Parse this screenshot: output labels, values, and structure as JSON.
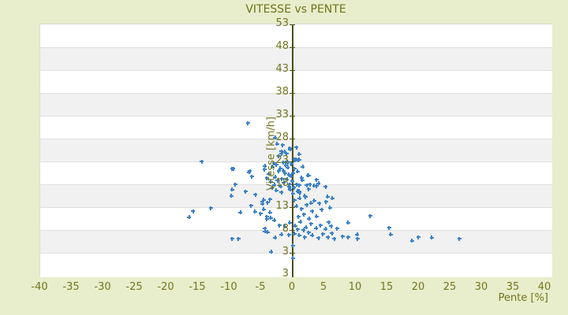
{
  "colors": {
    "background": "#e8edcb",
    "label_olive": "#73761e",
    "title_olive": "#6e7419",
    "axis_line": "#4b4e0a",
    "band_white": "#ffffff",
    "band_gray": "#f1f1f1",
    "gridline": "#e0e0e0",
    "point_blue": "#3c82c8"
  },
  "chart_data": {
    "type": "scatter",
    "title": "VITESSE vs PENTE",
    "xlabel": "Pente [%]",
    "ylabel": "Vitesse [km/h]",
    "x_ticks": [
      -40,
      -35,
      -30,
      -25,
      -20,
      -15,
      -10,
      -5,
      0,
      5,
      10,
      15,
      20,
      25,
      30,
      35,
      40
    ],
    "y_ticks": [
      3,
      8,
      13,
      18,
      23,
      28,
      33,
      38,
      43,
      48,
      53
    ],
    "y_axis_bottom_label": "3",
    "x_range": [
      -40,
      40
    ],
    "grid": "horizontal-bands",
    "legend": "none",
    "series": [
      {
        "name": "vitesse-vs-pente",
        "marker": "plus",
        "color": "#3c82c8",
        "points": [
          [
            -7.1,
            31.4
          ],
          [
            -2.8,
            28.2
          ],
          [
            -2.5,
            26.8
          ],
          [
            -1.8,
            25.2
          ],
          [
            -0.4,
            25.6
          ],
          [
            -1.0,
            24.7
          ],
          [
            -2.2,
            24.2
          ],
          [
            -0.5,
            25.9
          ],
          [
            -1.3,
            25.1
          ],
          [
            -1.8,
            24.7
          ],
          [
            0.6,
            26.1
          ],
          [
            1.0,
            24.6
          ],
          [
            -1.6,
            26.6
          ],
          [
            -14.4,
            23.0
          ],
          [
            -9.6,
            21.4
          ],
          [
            -6.9,
            20.6
          ],
          [
            -6.5,
            19.7
          ],
          [
            0.9,
            23.3
          ],
          [
            0.4,
            23.2
          ],
          [
            0.5,
            23.5
          ],
          [
            -0.8,
            22.8
          ],
          [
            -1.5,
            22.8
          ],
          [
            -0.9,
            23.0
          ],
          [
            -2.6,
            22.3
          ],
          [
            -4.4,
            22.0
          ],
          [
            -6.8,
            20.9
          ],
          [
            1.6,
            21.8
          ],
          [
            0.3,
            21.4
          ],
          [
            1.0,
            23.4
          ],
          [
            0.8,
            20.8
          ],
          [
            0.3,
            23.5
          ],
          [
            -9.4,
            21.4
          ],
          [
            -4.5,
            21.2
          ],
          [
            -3.8,
            20.3
          ],
          [
            -3.2,
            21.8
          ],
          [
            -2.8,
            19.6
          ],
          [
            -2.2,
            20.9
          ],
          [
            -1.7,
            19.2
          ],
          [
            -1.2,
            20.4
          ],
          [
            -0.8,
            21.7
          ],
          [
            -0.3,
            19.8
          ],
          [
            -3.5,
            18.6
          ],
          [
            -2.9,
            17.9
          ],
          [
            -2.4,
            18.8
          ],
          [
            -1.9,
            17.5
          ],
          [
            -1.4,
            18.3
          ],
          [
            -0.9,
            19.1
          ],
          [
            -0.5,
            18.0
          ],
          [
            -0.1,
            18.7
          ],
          [
            -4.1,
            19.3
          ],
          [
            -1.1,
            22.2
          ],
          [
            -0.6,
            20.1
          ],
          [
            -2.0,
            21.5
          ],
          [
            -3.0,
            22.6
          ],
          [
            -1.5,
            21.0
          ],
          [
            -0.2,
            22.4
          ],
          [
            0.1,
            20.5
          ],
          [
            -2.6,
            16.7
          ],
          [
            -1.8,
            16.2
          ],
          [
            -3.3,
            17.2
          ],
          [
            0.2,
            17.3
          ],
          [
            -0.4,
            16.8
          ],
          [
            -9.1,
            18.0
          ],
          [
            -9.6,
            16.8
          ],
          [
            -7.5,
            16.4
          ],
          [
            -9.7,
            15.5
          ],
          [
            -5.9,
            15.7
          ],
          [
            2.5,
            19.9
          ],
          [
            3.8,
            19.0
          ],
          [
            1.5,
            18.9
          ],
          [
            0.6,
            18.0
          ],
          [
            3.4,
            17.7
          ],
          [
            4.1,
            18.2
          ],
          [
            -0.6,
            17.4
          ],
          [
            5.2,
            17.4
          ],
          [
            2.5,
            16.9
          ],
          [
            1.0,
            16.5
          ],
          [
            0.0,
            16.0
          ],
          [
            1.9,
            15.5
          ],
          [
            1.4,
            19.4
          ],
          [
            2.4,
            19.9
          ],
          [
            1.0,
            17.8
          ],
          [
            2.2,
            17.8
          ],
          [
            2.7,
            18.0
          ],
          [
            3.8,
            17.6
          ],
          [
            0.8,
            16.5
          ],
          [
            1.1,
            16.1
          ],
          [
            -4.8,
            13.7
          ],
          [
            -6.6,
            13.3
          ],
          [
            -13.0,
            12.8
          ],
          [
            -15.8,
            12.1
          ],
          [
            -16.4,
            10.8
          ],
          [
            -8.3,
            11.8
          ],
          [
            -6.0,
            12.0
          ],
          [
            -5.1,
            11.6
          ],
          [
            -4.1,
            10.4
          ],
          [
            -2.9,
            10.1
          ],
          [
            -4.8,
            14.2
          ],
          [
            -4.6,
            14.6
          ],
          [
            -4.0,
            14.0
          ],
          [
            -3.6,
            14.7
          ],
          [
            -4.6,
            12.5
          ],
          [
            -3.6,
            11.8
          ],
          [
            -4.1,
            10.9
          ],
          [
            -3.5,
            10.6
          ],
          [
            5.5,
            15.3
          ],
          [
            6.3,
            14.9
          ],
          [
            5.3,
            14.2
          ],
          [
            2.9,
            13.9
          ],
          [
            0.6,
            13.2
          ],
          [
            1.4,
            12.6
          ],
          [
            2.2,
            13.5
          ],
          [
            3.1,
            12.1
          ],
          [
            1.8,
            11.4
          ],
          [
            0.9,
            10.9
          ],
          [
            2.6,
            10.5
          ],
          [
            3.8,
            11.0
          ],
          [
            4.6,
            12.4
          ],
          [
            0.3,
            14.5
          ],
          [
            1.1,
            14.9
          ],
          [
            4.2,
            13.8
          ],
          [
            5.9,
            12.9
          ],
          [
            3.4,
            14.4
          ],
          [
            2.0,
            15.2
          ],
          [
            12.3,
            11.1
          ],
          [
            8.8,
            9.6
          ],
          [
            15.3,
            8.5
          ],
          [
            -0.5,
            9.6
          ],
          [
            0.4,
            8.9
          ],
          [
            1.2,
            9.8
          ],
          [
            2.1,
            8.6
          ],
          [
            2.9,
            9.3
          ],
          [
            3.7,
            8.4
          ],
          [
            4.4,
            9.0
          ],
          [
            5.2,
            8.2
          ],
          [
            6.1,
            8.8
          ],
          [
            7.0,
            8.3
          ],
          [
            0.8,
            8.1
          ],
          [
            1.7,
            8.0
          ],
          [
            -1.2,
            8.7
          ],
          [
            -2.1,
            9.0
          ],
          [
            5.7,
            9.7
          ],
          [
            -4.4,
            8.3
          ],
          [
            -2.8,
            6.3
          ],
          [
            -1.8,
            7.0
          ],
          [
            1.0,
            6.8
          ],
          [
            1.9,
            6.4
          ],
          [
            3.1,
            6.8
          ],
          [
            4.1,
            6.2
          ],
          [
            5.6,
            6.4
          ],
          [
            6.6,
            6.1
          ],
          [
            7.9,
            6.6
          ],
          [
            8.8,
            6.4
          ],
          [
            10.2,
            7.0
          ],
          [
            10.3,
            6.1
          ],
          [
            15.5,
            7.0
          ],
          [
            18.9,
            5.6
          ],
          [
            19.9,
            6.4
          ],
          [
            22.0,
            6.3
          ],
          [
            26.4,
            6.1
          ],
          [
            -9.6,
            6.1
          ],
          [
            -8.6,
            6.1
          ],
          [
            0.3,
            7.2
          ],
          [
            2.5,
            7.4
          ],
          [
            4.8,
            7.1
          ],
          [
            6.2,
            7.3
          ],
          [
            -0.6,
            6.9
          ],
          [
            -4.4,
            7.7
          ],
          [
            -4.0,
            7.5
          ],
          [
            0.0,
            4.6
          ],
          [
            -3.4,
            3.2
          ],
          [
            0.0,
            1.8
          ]
        ]
      }
    ]
  }
}
